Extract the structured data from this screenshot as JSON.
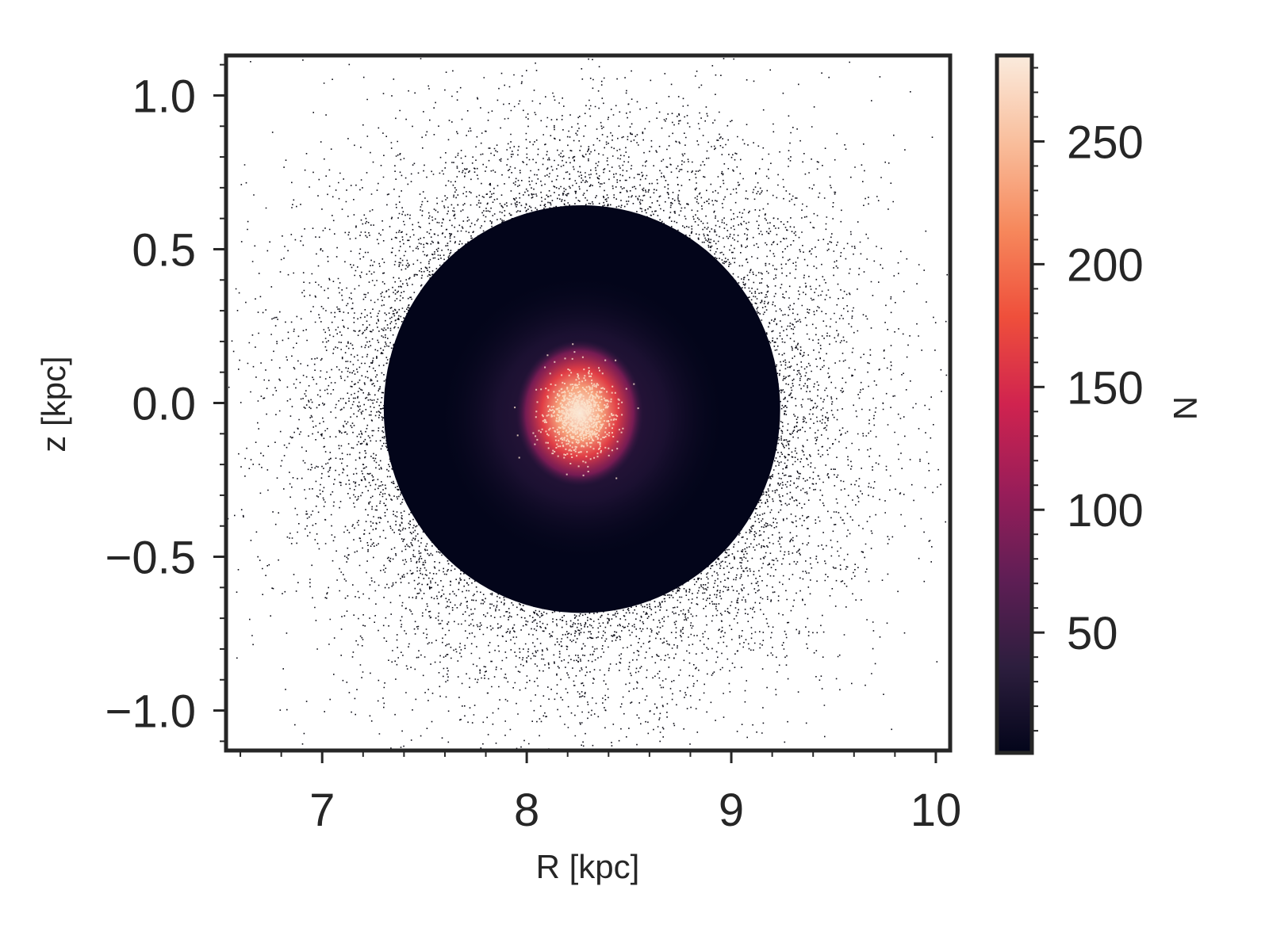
{
  "chart_data": {
    "type": "heatmap",
    "title": "",
    "xlabel": "R [kpc]",
    "ylabel": "z [kpc]",
    "xlim": [
      6.53,
      10.07
    ],
    "ylim": [
      -1.13,
      1.13
    ],
    "x_ticks": [
      7,
      8,
      9,
      10
    ],
    "x_tick_labels": [
      "7",
      "8",
      "9",
      "10"
    ],
    "y_ticks": [
      -1.0,
      -0.5,
      0.0,
      0.5,
      1.0
    ],
    "y_tick_labels": [
      "−1.0",
      "−0.5",
      "0.0",
      "0.5",
      "1.0"
    ],
    "colorbar": {
      "label": "N",
      "range": [
        1,
        285
      ],
      "ticks": [
        50,
        100,
        150,
        200,
        250
      ],
      "tick_labels": [
        "50",
        "100",
        "150",
        "200",
        "250"
      ],
      "colormap": "rocket",
      "colormap_stops": [
        "#03051a",
        "#2d1e3e",
        "#5f1e55",
        "#991d59",
        "#d0234f",
        "#ef4f3b",
        "#f6885c",
        "#f9be9c",
        "#faebdd"
      ]
    },
    "distribution": {
      "peak_R": 8.27,
      "peak_z": -0.02,
      "peak_N": 285,
      "dense_region_R": [
        7.3,
        9.2
      ],
      "dense_region_z": [
        -0.65,
        0.65
      ],
      "sparse_extent_R": [
        6.6,
        10.0
      ],
      "sparse_extent_z": [
        -1.1,
        1.1
      ]
    },
    "grid": false,
    "background_color": "#ffffff"
  }
}
